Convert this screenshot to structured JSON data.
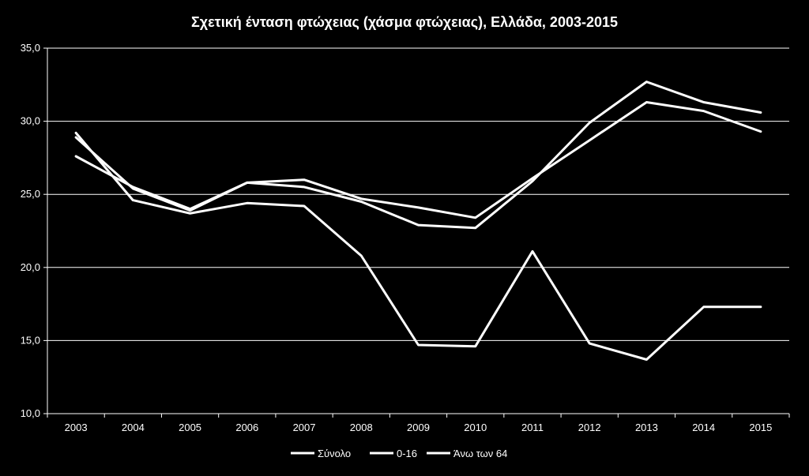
{
  "chart_data": {
    "type": "line",
    "title": "Σχετική ένταση φτώχειας (χάσμα φτώχειας),  Ελλάδα, 2003-2015",
    "xlabel": "",
    "ylabel": "",
    "categories": [
      "2003",
      "2004",
      "2005",
      "2006",
      "2007",
      "2008",
      "2009",
      "2010",
      "2011",
      "2012",
      "2013",
      "2014",
      "2015"
    ],
    "ylim": [
      10,
      35
    ],
    "yticks": [
      "10,0",
      "15,0",
      "20,0",
      "25,0",
      "30,0",
      "35,0"
    ],
    "grid": true,
    "legend_position": "bottom",
    "line_color": "#ffffff",
    "background_color": "#000000",
    "series": [
      {
        "name": "Σύνολο",
        "values": [
          27.6,
          25.5,
          24.0,
          25.8,
          25.5,
          24.5,
          22.9,
          22.7,
          25.9,
          29.9,
          32.7,
          31.3,
          30.6
        ]
      },
      {
        "name": "0-16",
        "values": [
          28.9,
          25.4,
          23.9,
          25.8,
          26.0,
          24.7,
          24.1,
          23.4,
          26.1,
          28.7,
          31.3,
          30.7,
          29.3
        ]
      },
      {
        "name": "Άνω των 64",
        "values": [
          29.2,
          24.6,
          23.7,
          24.4,
          24.2,
          20.8,
          14.7,
          14.6,
          21.1,
          14.8,
          13.7,
          17.3,
          17.3
        ]
      }
    ]
  }
}
